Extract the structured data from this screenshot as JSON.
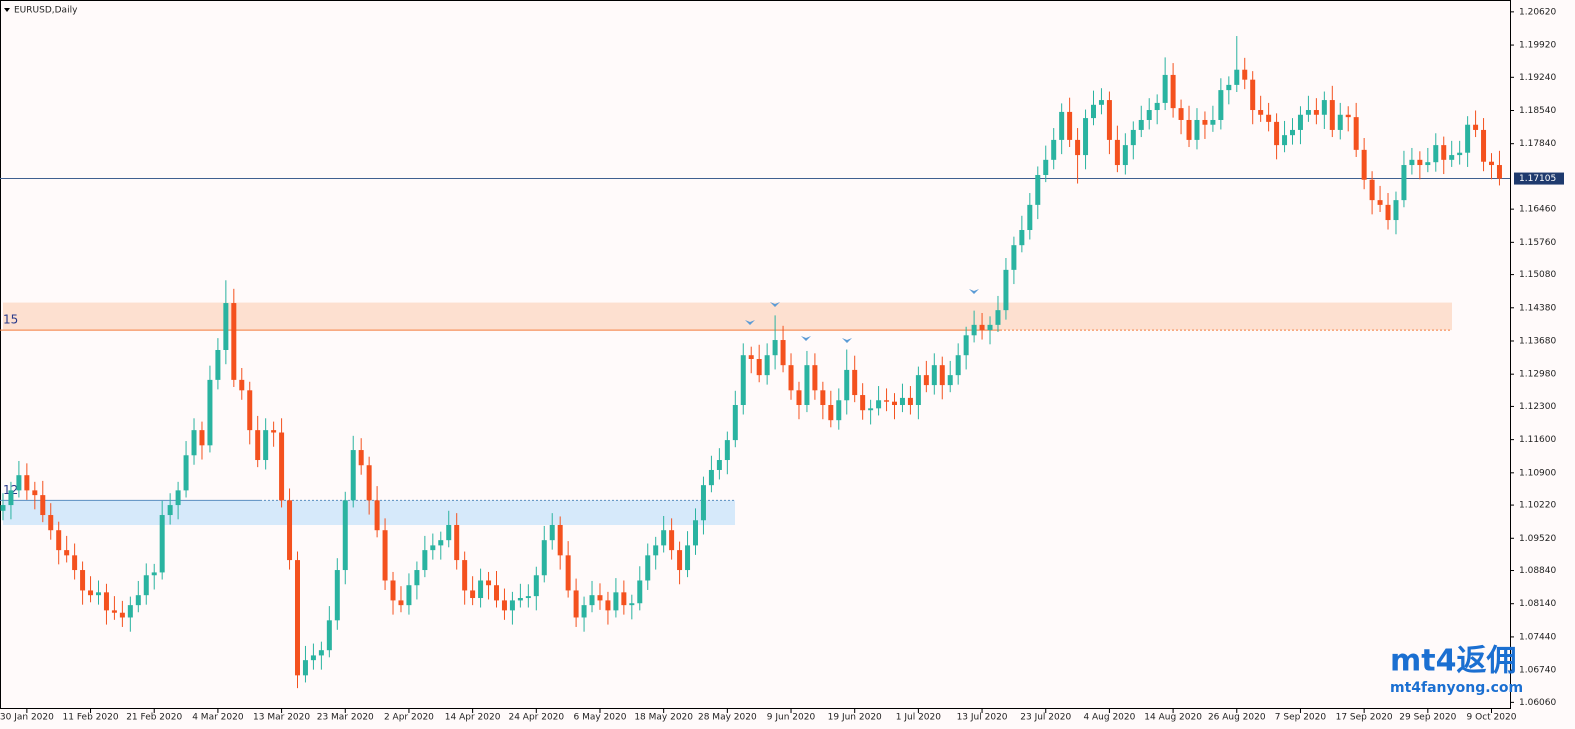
{
  "chart_data": {
    "type": "candlestick",
    "title": "EURUSD,Daily",
    "up_color": "#2ab3a0",
    "down_color": "#f4511e",
    "ylim": [
      1.0592,
      1.2087
    ],
    "yticks": [
      {
        "value": 1.2062,
        "label": "1.20620"
      },
      {
        "value": 1.1992,
        "label": "1.19920"
      },
      {
        "value": 1.1924,
        "label": "1.19240"
      },
      {
        "value": 1.1854,
        "label": "1.18540"
      },
      {
        "value": 1.1784,
        "label": "1.17840"
      },
      {
        "value": 1.1646,
        "label": "1.16460"
      },
      {
        "value": 1.1576,
        "label": "1.15760"
      },
      {
        "value": 1.1508,
        "label": "1.15080"
      },
      {
        "value": 1.1438,
        "label": "1.14380"
      },
      {
        "value": 1.1368,
        "label": "1.13680"
      },
      {
        "value": 1.1298,
        "label": "1.12980"
      },
      {
        "value": 1.123,
        "label": "1.12300"
      },
      {
        "value": 1.116,
        "label": "1.11600"
      },
      {
        "value": 1.109,
        "label": "1.10900"
      },
      {
        "value": 1.1022,
        "label": "1.10220"
      },
      {
        "value": 1.0952,
        "label": "1.09520"
      },
      {
        "value": 1.0884,
        "label": "1.08840"
      },
      {
        "value": 1.0814,
        "label": "1.08140"
      },
      {
        "value": 1.0744,
        "label": "1.07440"
      },
      {
        "value": 1.0674,
        "label": "1.06740"
      },
      {
        "value": 1.0606,
        "label": "1.06060"
      }
    ],
    "last_price": {
      "value": 1.17105,
      "label": "1.17105"
    },
    "zones": [
      {
        "label": "15",
        "top": 1.1449,
        "bottom": 1.1391,
        "fill": "#fde0d0",
        "line": "#f47a3a"
      },
      {
        "label": "12",
        "top": 1.1032,
        "bottom": 1.098,
        "fill": "#d6e9fa",
        "line": "#5a8fc0"
      }
    ],
    "watermark": {
      "logo": "mt4返佣",
      "url": "mt4fanyong.com"
    },
    "categories": [
      null,
      null,
      null,
      "30 Jan 2020",
      null,
      null,
      null,
      null,
      null,
      null,
      null,
      "11 Feb 2020",
      null,
      null,
      null,
      null,
      null,
      null,
      null,
      "21 Feb 2020",
      null,
      null,
      null,
      null,
      null,
      null,
      null,
      "4 Mar 2020",
      null,
      null,
      null,
      null,
      null,
      null,
      null,
      "13 Mar 2020",
      null,
      null,
      null,
      null,
      null,
      null,
      null,
      "23 Mar 2020",
      null,
      null,
      null,
      null,
      null,
      null,
      null,
      "2 Apr 2020",
      null,
      null,
      null,
      null,
      null,
      null,
      null,
      "14 Apr 2020",
      null,
      null,
      null,
      null,
      null,
      null,
      null,
      "24 Apr 2020",
      null,
      null,
      null,
      null,
      null,
      null,
      null,
      "6 May 2020",
      null,
      null,
      null,
      null,
      null,
      null,
      null,
      "18 May 2020",
      null,
      null,
      null,
      null,
      null,
      null,
      null,
      "28 May 2020",
      null,
      null,
      null,
      null,
      null,
      null,
      null,
      "9 Jun 2020",
      null,
      null,
      null,
      null,
      null,
      null,
      null,
      "19 Jun 2020",
      null,
      null,
      null,
      null,
      null,
      null,
      null,
      "1 Jul 2020",
      null,
      null,
      null,
      null,
      null,
      null,
      null,
      "13 Jul 2020",
      null,
      null,
      null,
      null,
      null,
      null,
      null,
      "23 Jul 2020",
      null,
      null,
      null,
      null,
      null,
      null,
      null,
      "4 Aug 2020",
      null,
      null,
      null,
      null,
      null,
      null,
      null,
      "14 Aug 2020",
      null,
      null,
      null,
      null,
      null,
      null,
      null,
      "26 Aug 2020",
      null,
      null,
      null,
      null,
      null,
      null,
      null,
      "7 Sep 2020",
      null,
      null,
      null,
      null,
      null,
      null,
      null,
      "17 Sep 2020",
      null,
      null,
      null,
      null,
      null,
      null,
      null,
      "29 Sep 2020",
      null,
      null,
      null,
      null,
      null,
      null,
      null,
      "9 Oct 2020",
      null
    ],
    "candles": [
      [
        1.101,
        1.1047,
        1.099,
        1.1022
      ],
      [
        1.1022,
        1.1071,
        1.0992,
        1.1053
      ],
      [
        1.1053,
        1.1115,
        1.1038,
        1.1085
      ],
      [
        1.1085,
        1.111,
        1.1033,
        1.1053
      ],
      [
        1.1053,
        1.1071,
        1.1013,
        1.1043
      ],
      [
        1.1043,
        1.1073,
        1.0986,
        1.1001
      ],
      [
        1.1001,
        1.1026,
        1.0949,
        1.0969
      ],
      [
        1.0969,
        1.0987,
        1.0897,
        1.0927
      ],
      [
        1.0927,
        1.0957,
        1.0901,
        1.0916
      ],
      [
        1.0916,
        1.0941,
        1.0865,
        1.0885
      ],
      [
        1.0885,
        1.0903,
        1.0812,
        1.0842
      ],
      [
        1.0842,
        1.0872,
        1.0817,
        1.0832
      ],
      [
        1.0832,
        1.0863,
        1.0812,
        1.0838
      ],
      [
        1.0838,
        1.0856,
        1.077,
        1.08
      ],
      [
        1.08,
        1.083,
        1.078,
        1.0795
      ],
      [
        1.0795,
        1.082,
        1.0765,
        1.0785
      ],
      [
        1.0785,
        1.0829,
        1.0755,
        1.0811
      ],
      [
        1.0811,
        1.0862,
        1.0796,
        1.0832
      ],
      [
        1.0832,
        1.0899,
        1.0812,
        1.0874
      ],
      [
        1.0874,
        1.0898,
        1.0844,
        1.088
      ],
      [
        1.088,
        1.1031,
        1.0865,
        1.1001
      ],
      [
        1.1001,
        1.1047,
        1.0981,
        1.1022
      ],
      [
        1.1022,
        1.1071,
        1.0992,
        1.1053
      ],
      [
        1.1053,
        1.1157,
        1.1038,
        1.1127
      ],
      [
        1.1127,
        1.1205,
        1.1107,
        1.118
      ],
      [
        1.118,
        1.1198,
        1.1118,
        1.1148
      ],
      [
        1.1148,
        1.1316,
        1.1133,
        1.1286
      ],
      [
        1.1286,
        1.1374,
        1.1266,
        1.1349
      ],
      [
        1.1349,
        1.1496,
        1.1319,
        1.1448
      ],
      [
        1.1448,
        1.1478,
        1.1271,
        1.1286
      ],
      [
        1.1286,
        1.1311,
        1.1244,
        1.1264
      ],
      [
        1.1264,
        1.1282,
        1.115,
        1.118
      ],
      [
        1.118,
        1.121,
        1.1102,
        1.1117
      ],
      [
        1.1117,
        1.1205,
        1.1097,
        1.118
      ],
      [
        1.118,
        1.1198,
        1.1145,
        1.1175
      ],
      [
        1.1175,
        1.1205,
        1.1017,
        1.1032
      ],
      [
        1.1032,
        1.1057,
        1.0886,
        1.0906
      ],
      [
        1.0906,
        1.0924,
        1.0636,
        1.0663
      ],
      [
        1.0663,
        1.0725,
        1.0648,
        1.0695
      ],
      [
        1.0695,
        1.073,
        1.0675,
        1.0705
      ],
      [
        1.0705,
        1.0734,
        1.0675,
        1.0716
      ],
      [
        1.0716,
        1.0809,
        1.0701,
        1.0779
      ],
      [
        1.0779,
        1.091,
        1.0759,
        1.0885
      ],
      [
        1.0885,
        1.105,
        1.0855,
        1.1032
      ],
      [
        1.1032,
        1.1168,
        1.1017,
        1.1138
      ],
      [
        1.1138,
        1.1163,
        1.1086,
        1.1106
      ],
      [
        1.1106,
        1.1124,
        1.1002,
        1.1032
      ],
      [
        1.1032,
        1.1062,
        1.0954,
        1.0969
      ],
      [
        1.0969,
        1.0994,
        1.0843,
        1.0863
      ],
      [
        1.0863,
        1.0881,
        1.0791,
        1.0821
      ],
      [
        1.0821,
        1.0851,
        1.0796,
        1.0811
      ],
      [
        1.0811,
        1.0878,
        1.0791,
        1.0853
      ],
      [
        1.0853,
        1.0903,
        1.0823,
        1.0885
      ],
      [
        1.0885,
        1.0957,
        1.087,
        1.0927
      ],
      [
        1.0927,
        1.0962,
        1.0907,
        1.0937
      ],
      [
        1.0937,
        1.0966,
        1.0907,
        1.0948
      ],
      [
        1.0948,
        1.101,
        1.0933,
        1.098
      ],
      [
        1.098,
        1.1005,
        1.0886,
        1.0906
      ],
      [
        1.0906,
        1.0924,
        1.0812,
        1.0842
      ],
      [
        1.0842,
        1.0872,
        1.0811,
        1.0826
      ],
      [
        1.0826,
        1.0888,
        1.0806,
        1.0863
      ],
      [
        1.0863,
        1.0881,
        1.0823,
        1.0853
      ],
      [
        1.0853,
        1.0883,
        1.0806,
        1.0821
      ],
      [
        1.0821,
        1.0846,
        1.078,
        1.08
      ],
      [
        1.08,
        1.0839,
        1.077,
        1.0821
      ],
      [
        1.0821,
        1.0856,
        1.0806,
        1.0826
      ],
      [
        1.0826,
        1.0855,
        1.0806,
        1.083
      ],
      [
        1.083,
        1.0892,
        1.08,
        1.0874
      ],
      [
        1.0874,
        1.0978,
        1.0859,
        1.0948
      ],
      [
        1.0948,
        1.1005,
        1.0928,
        1.098
      ],
      [
        1.098,
        1.0998,
        1.0886,
        1.0916
      ],
      [
        1.0916,
        1.0946,
        1.0827,
        1.0842
      ],
      [
        1.0842,
        1.0867,
        1.0765,
        1.0785
      ],
      [
        1.0785,
        1.0829,
        1.0755,
        1.0811
      ],
      [
        1.0811,
        1.0862,
        1.0796,
        1.0832
      ],
      [
        1.0832,
        1.0857,
        1.0801,
        1.0821
      ],
      [
        1.0821,
        1.0839,
        1.077,
        1.08
      ],
      [
        1.08,
        1.0868,
        1.0785,
        1.0838
      ],
      [
        1.0838,
        1.0863,
        1.0791,
        1.0811
      ],
      [
        1.0811,
        1.0833,
        1.0781,
        1.0815
      ],
      [
        1.0815,
        1.0893,
        1.08,
        1.0863
      ],
      [
        1.0863,
        1.0941,
        1.0843,
        1.0916
      ],
      [
        1.0916,
        1.0955,
        1.0886,
        1.0937
      ],
      [
        1.0937,
        1.0999,
        1.0922,
        1.0969
      ],
      [
        1.0969,
        1.0994,
        1.0907,
        1.0927
      ],
      [
        1.0927,
        1.0945,
        1.0855,
        1.0885
      ],
      [
        1.0885,
        1.0967,
        1.087,
        1.0937
      ],
      [
        1.0937,
        1.1015,
        1.0917,
        1.099
      ],
      [
        1.099,
        1.1082,
        1.096,
        1.1064
      ],
      [
        1.1064,
        1.1126,
        1.1049,
        1.1096
      ],
      [
        1.1096,
        1.1142,
        1.1076,
        1.1117
      ],
      [
        1.1117,
        1.1177,
        1.1087,
        1.1159
      ],
      [
        1.1159,
        1.1263,
        1.1144,
        1.1233
      ],
      [
        1.1233,
        1.1363,
        1.1213,
        1.1338
      ],
      [
        1.1338,
        1.1356,
        1.13,
        1.133
      ],
      [
        1.133,
        1.136,
        1.1281,
        1.1296
      ],
      [
        1.1296,
        1.1363,
        1.1276,
        1.1338
      ],
      [
        1.1338,
        1.1422,
        1.1308,
        1.137
      ],
      [
        1.137,
        1.14,
        1.1302,
        1.1317
      ],
      [
        1.1317,
        1.1342,
        1.1244,
        1.1264
      ],
      [
        1.1264,
        1.1282,
        1.1203,
        1.1233
      ],
      [
        1.1233,
        1.1347,
        1.1218,
        1.1317
      ],
      [
        1.1317,
        1.1342,
        1.1244,
        1.1264
      ],
      [
        1.1264,
        1.1282,
        1.1203,
        1.1233
      ],
      [
        1.1233,
        1.1263,
        1.1186,
        1.1201
      ],
      [
        1.1201,
        1.1268,
        1.1181,
        1.1243
      ],
      [
        1.1243,
        1.135,
        1.1213,
        1.1307
      ],
      [
        1.1307,
        1.1337,
        1.1239,
        1.1254
      ],
      [
        1.1254,
        1.1279,
        1.1202,
        1.1222
      ],
      [
        1.1222,
        1.1244,
        1.1192,
        1.1226
      ],
      [
        1.1226,
        1.1273,
        1.1211,
        1.1243
      ],
      [
        1.1243,
        1.1268,
        1.122,
        1.124
      ],
      [
        1.124,
        1.1258,
        1.1203,
        1.1233
      ],
      [
        1.1233,
        1.1278,
        1.1218,
        1.1248
      ],
      [
        1.1248,
        1.1273,
        1.1213,
        1.1233
      ],
      [
        1.1233,
        1.1314,
        1.1203,
        1.1296
      ],
      [
        1.1296,
        1.1326,
        1.126,
        1.1275
      ],
      [
        1.1275,
        1.1342,
        1.1255,
        1.1317
      ],
      [
        1.1317,
        1.1335,
        1.1245,
        1.1275
      ],
      [
        1.1275,
        1.1326,
        1.126,
        1.1296
      ],
      [
        1.1296,
        1.1363,
        1.1276,
        1.1338
      ],
      [
        1.1338,
        1.1398,
        1.1308,
        1.138
      ],
      [
        1.138,
        1.1432,
        1.1365,
        1.1402
      ],
      [
        1.1402,
        1.1427,
        1.1371,
        1.1391
      ],
      [
        1.1391,
        1.142,
        1.1361,
        1.1402
      ],
      [
        1.1402,
        1.1463,
        1.1387,
        1.1433
      ],
      [
        1.1433,
        1.1543,
        1.1413,
        1.1518
      ],
      [
        1.1518,
        1.1588,
        1.1488,
        1.157
      ],
      [
        1.157,
        1.1632,
        1.1555,
        1.1602
      ],
      [
        1.1602,
        1.168,
        1.1582,
        1.1655
      ],
      [
        1.1655,
        1.1736,
        1.1625,
        1.1718
      ],
      [
        1.1718,
        1.178,
        1.1703,
        1.175
      ],
      [
        1.175,
        1.1817,
        1.173,
        1.1792
      ],
      [
        1.1792,
        1.1869,
        1.1762,
        1.1851
      ],
      [
        1.1851,
        1.1881,
        1.1777,
        1.1792
      ],
      [
        1.1792,
        1.1817,
        1.17,
        1.176
      ],
      [
        1.176,
        1.1856,
        1.173,
        1.1838
      ],
      [
        1.1838,
        1.1896,
        1.1823,
        1.1866
      ],
      [
        1.1866,
        1.1901,
        1.1846,
        1.1876
      ],
      [
        1.1876,
        1.1894,
        1.1762,
        1.1792
      ],
      [
        1.1792,
        1.1822,
        1.1724,
        1.1739
      ],
      [
        1.1739,
        1.1806,
        1.1719,
        1.1781
      ],
      [
        1.1781,
        1.1831,
        1.1751,
        1.1813
      ],
      [
        1.1813,
        1.1864,
        1.1798,
        1.1834
      ],
      [
        1.1834,
        1.188,
        1.1814,
        1.1855
      ],
      [
        1.1855,
        1.1888,
        1.1825,
        1.187
      ],
      [
        1.187,
        1.1966,
        1.1855,
        1.1929
      ],
      [
        1.1929,
        1.1954,
        1.1839,
        1.1859
      ],
      [
        1.1859,
        1.1877,
        1.1804,
        1.1834
      ],
      [
        1.1834,
        1.1864,
        1.1777,
        1.1792
      ],
      [
        1.1792,
        1.1859,
        1.1772,
        1.1834
      ],
      [
        1.1834,
        1.1852,
        1.1794,
        1.1824
      ],
      [
        1.1824,
        1.1864,
        1.1809,
        1.1834
      ],
      [
        1.1834,
        1.1922,
        1.1814,
        1.1897
      ],
      [
        1.1897,
        1.1926,
        1.1867,
        1.1908
      ],
      [
        1.1908,
        1.2011,
        1.1893,
        1.194
      ],
      [
        1.194,
        1.1965,
        1.1899,
        1.1919
      ],
      [
        1.1919,
        1.1937,
        1.1825,
        1.1855
      ],
      [
        1.1855,
        1.1885,
        1.183,
        1.1845
      ],
      [
        1.1845,
        1.187,
        1.181,
        1.183
      ],
      [
        1.183,
        1.1848,
        1.1751,
        1.1781
      ],
      [
        1.1781,
        1.1832,
        1.1766,
        1.1802
      ],
      [
        1.1802,
        1.1838,
        1.1782,
        1.1813
      ],
      [
        1.1813,
        1.1863,
        1.1783,
        1.1845
      ],
      [
        1.1845,
        1.1885,
        1.183,
        1.1855
      ],
      [
        1.1855,
        1.188,
        1.1825,
        1.1845
      ],
      [
        1.1845,
        1.1894,
        1.1815,
        1.1876
      ],
      [
        1.1876,
        1.1906,
        1.1798,
        1.1813
      ],
      [
        1.1813,
        1.187,
        1.1793,
        1.1845
      ],
      [
        1.1845,
        1.1863,
        1.181,
        1.184
      ],
      [
        1.184,
        1.187,
        1.1756,
        1.1771
      ],
      [
        1.1771,
        1.1796,
        1.1688,
        1.1708
      ],
      [
        1.1708,
        1.1726,
        1.1635,
        1.1665
      ],
      [
        1.1665,
        1.1695,
        1.164,
        1.1655
      ],
      [
        1.1655,
        1.168,
        1.1603,
        1.1623
      ],
      [
        1.1623,
        1.1683,
        1.1593,
        1.1665
      ],
      [
        1.1665,
        1.1769,
        1.165,
        1.1739
      ],
      [
        1.1739,
        1.1775,
        1.1719,
        1.175
      ],
      [
        1.175,
        1.1768,
        1.1709,
        1.1739
      ],
      [
        1.1739,
        1.1775,
        1.1724,
        1.1745
      ],
      [
        1.1745,
        1.1806,
        1.1725,
        1.1781
      ],
      [
        1.1781,
        1.1799,
        1.172,
        1.175
      ],
      [
        1.175,
        1.179,
        1.1735,
        1.176
      ],
      [
        1.176,
        1.179,
        1.174,
        1.1765
      ],
      [
        1.1765,
        1.1842,
        1.1735,
        1.1824
      ],
      [
        1.1824,
        1.1854,
        1.1798,
        1.1813
      ],
      [
        1.1813,
        1.1838,
        1.1726,
        1.1746
      ],
      [
        1.1746,
        1.1764,
        1.1709,
        1.1739
      ],
      [
        1.1739,
        1.1769,
        1.1696,
        1.17105
      ]
    ]
  }
}
